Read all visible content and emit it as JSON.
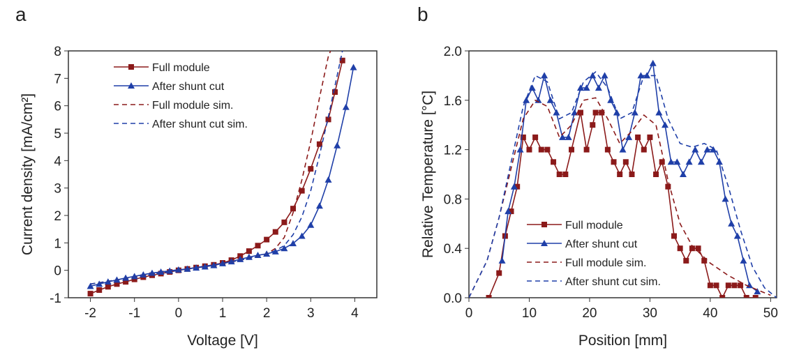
{
  "colors": {
    "full": "#8b1a1a",
    "shunt": "#1f3fa8"
  },
  "chart_data": [
    {
      "panel_label": "a",
      "type": "line",
      "xlabel": "Voltage [V]",
      "ylabel": "Current density [mA/cm²]",
      "xlim": [
        -2.5,
        4.5
      ],
      "ylim": [
        -1,
        8
      ],
      "xticks": [
        -2,
        -1,
        0,
        1,
        2,
        3,
        4
      ],
      "yticks": [
        -1,
        0,
        1,
        2,
        3,
        4,
        5,
        6,
        7,
        8
      ],
      "legend_position": "top-left",
      "series": [
        {
          "name": "Full module",
          "style": "line-square",
          "color": "#8b1a1a",
          "x": [
            -2,
            -1.8,
            -1.6,
            -1.4,
            -1.2,
            -1,
            -0.8,
            -0.6,
            -0.4,
            -0.2,
            0,
            0.2,
            0.4,
            0.6,
            0.8,
            1,
            1.2,
            1.4,
            1.6,
            1.8,
            2,
            2.2,
            2.4,
            2.6,
            2.8,
            3,
            3.2,
            3.4,
            3.55,
            3.72
          ],
          "y": [
            -0.85,
            -0.72,
            -0.6,
            -0.5,
            -0.42,
            -0.33,
            -0.25,
            -0.18,
            -0.12,
            -0.06,
            0,
            0.05,
            0.1,
            0.15,
            0.2,
            0.27,
            0.37,
            0.52,
            0.7,
            0.9,
            1.12,
            1.4,
            1.75,
            2.25,
            2.9,
            3.7,
            4.6,
            5.5,
            6.5,
            7.65
          ]
        },
        {
          "name": "After shunt cut",
          "style": "line-triangle",
          "color": "#1f3fa8",
          "x": [
            -2,
            -1.8,
            -1.6,
            -1.4,
            -1.2,
            -1,
            -0.8,
            -0.6,
            -0.4,
            -0.2,
            0,
            0.2,
            0.4,
            0.6,
            0.8,
            1,
            1.2,
            1.4,
            1.6,
            1.8,
            2,
            2.2,
            2.4,
            2.6,
            2.8,
            3,
            3.2,
            3.4,
            3.6,
            3.8,
            3.97
          ],
          "y": [
            -0.58,
            -0.5,
            -0.42,
            -0.35,
            -0.28,
            -0.22,
            -0.16,
            -0.1,
            -0.06,
            -0.02,
            0.02,
            0.05,
            0.09,
            0.13,
            0.18,
            0.25,
            0.32,
            0.4,
            0.48,
            0.55,
            0.6,
            0.68,
            0.8,
            0.98,
            1.25,
            1.65,
            2.35,
            3.3,
            4.55,
            5.95,
            7.4
          ]
        },
        {
          "name": "Full module sim.",
          "style": "dash",
          "color": "#8b1a1a",
          "x": [
            -2,
            -1,
            0,
            1,
            1.5,
            2,
            2.2,
            2.4,
            2.6,
            2.8,
            3,
            3.2,
            3.4,
            3.45
          ],
          "y": [
            -0.5,
            -0.25,
            0,
            0.25,
            0.4,
            0.6,
            0.8,
            1.2,
            2.1,
            3.3,
            4.7,
            6.3,
            7.8,
            8
          ]
        },
        {
          "name": "After shunt cut sim.",
          "style": "dash",
          "color": "#1f3fa8",
          "x": [
            -2,
            -1,
            0,
            1,
            1.5,
            2,
            2.2,
            2.4,
            2.6,
            2.8,
            3,
            3.2,
            3.4,
            3.6,
            3.72
          ],
          "y": [
            -0.5,
            -0.25,
            0,
            0.25,
            0.4,
            0.6,
            0.72,
            0.9,
            1.3,
            1.95,
            2.9,
            4.2,
            5.6,
            7.1,
            8
          ]
        }
      ]
    },
    {
      "panel_label": "b",
      "type": "line",
      "xlabel": "Position [mm]",
      "ylabel": "Relative Temperature [°C]",
      "xlim": [
        0,
        51
      ],
      "ylim": [
        0,
        2
      ],
      "xticks": [
        0,
        10,
        20,
        30,
        40,
        50
      ],
      "yticks": [
        0,
        0.4,
        0.8,
        1.2,
        1.6,
        2.0
      ],
      "ytick_labels": [
        "0.0",
        "0.4",
        "0.8",
        "1.2",
        "1.6",
        "2.0"
      ],
      "legend_position": "bottom-center",
      "series": [
        {
          "name": "Full module",
          "style": "line-square",
          "color": "#8b1a1a",
          "x": [
            3.3,
            5,
            6,
            7,
            8,
            9,
            10,
            11,
            12,
            13,
            14,
            15,
            16,
            17,
            18.5,
            19.5,
            20.5,
            21,
            22,
            23,
            24,
            25,
            26,
            27,
            28,
            29,
            30,
            31,
            32,
            33,
            34,
            35,
            36,
            37,
            38,
            39,
            40,
            41,
            42,
            43,
            44,
            45,
            46,
            47.5
          ],
          "y": [
            0,
            0.2,
            0.5,
            0.7,
            0.9,
            1.3,
            1.2,
            1.3,
            1.2,
            1.2,
            1.1,
            1.0,
            1.0,
            1.2,
            1.5,
            1.2,
            1.4,
            1.5,
            1.5,
            1.2,
            1.1,
            1.0,
            1.1,
            1.0,
            1.3,
            1.2,
            1.3,
            1.0,
            1.1,
            0.9,
            0.5,
            0.4,
            0.3,
            0.4,
            0.4,
            0.3,
            0.1,
            0.1,
            0.0,
            0.1,
            0.1,
            0.1,
            0.0,
            0.0
          ]
        },
        {
          "name": "After shunt cut",
          "style": "line-triangle",
          "color": "#1f3fa8",
          "x": [
            5.5,
            6.5,
            7.5,
            8.5,
            9.5,
            10.5,
            11.5,
            12.5,
            13.5,
            14.5,
            15.5,
            16.5,
            17.5,
            18.5,
            19.5,
            20.5,
            21.5,
            22.5,
            23.5,
            24.5,
            25.5,
            26.5,
            27.5,
            28.5,
            29.5,
            30.5,
            31.5,
            32.5,
            33.5,
            34.5,
            35.5,
            36.5,
            37.5,
            38.5,
            39.5,
            40.5,
            41.5,
            42.5,
            43.5,
            44.5,
            45.5,
            46.5,
            47.8
          ],
          "y": [
            0.3,
            0.7,
            0.9,
            1.2,
            1.6,
            1.7,
            1.6,
            1.8,
            1.6,
            1.5,
            1.3,
            1.3,
            1.5,
            1.7,
            1.7,
            1.8,
            1.7,
            1.8,
            1.6,
            1.5,
            1.2,
            1.3,
            1.5,
            1.8,
            1.8,
            1.9,
            1.5,
            1.4,
            1.1,
            1.1,
            1.0,
            1.1,
            1.2,
            1.1,
            1.2,
            1.2,
            1.1,
            0.8,
            0.6,
            0.5,
            0.3,
            0.1,
            0.05
          ]
        },
        {
          "name": "Full module sim.",
          "style": "dash",
          "color": "#8b1a1a",
          "x": [
            0,
            3,
            5,
            7,
            9,
            11,
            13,
            15,
            17,
            19,
            21,
            23,
            25,
            27,
            29,
            31,
            33,
            35,
            37,
            40,
            43,
            46,
            50
          ],
          "y": [
            0,
            0.3,
            0.65,
            1.05,
            1.45,
            1.6,
            1.55,
            1.3,
            1.4,
            1.6,
            1.62,
            1.45,
            1.25,
            1.35,
            1.48,
            1.4,
            0.95,
            0.6,
            0.42,
            0.28,
            0.18,
            0.1,
            0.02
          ]
        },
        {
          "name": "After shunt cut sim.",
          "style": "dash",
          "color": "#1f3fa8",
          "x": [
            0,
            3,
            5,
            7,
            9,
            11,
            13,
            15,
            17,
            19,
            21,
            23,
            25,
            27,
            29,
            31,
            33,
            35,
            37,
            39,
            41,
            43,
            45,
            47,
            49,
            51
          ],
          "y": [
            0,
            0.3,
            0.65,
            1.1,
            1.55,
            1.8,
            1.75,
            1.45,
            1.5,
            1.75,
            1.83,
            1.7,
            1.45,
            1.5,
            1.8,
            1.8,
            1.45,
            1.25,
            1.22,
            1.25,
            1.2,
            0.9,
            0.55,
            0.25,
            0.08,
            0
          ]
        }
      ]
    }
  ]
}
